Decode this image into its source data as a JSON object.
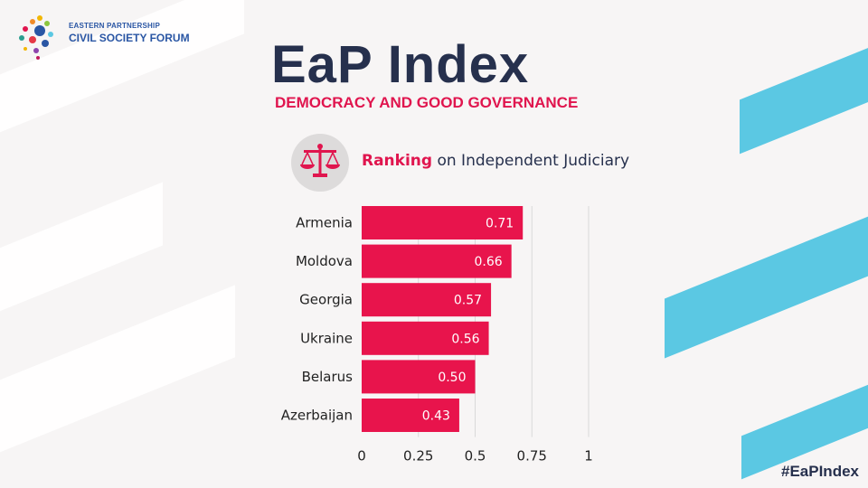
{
  "brand": {
    "org_line1": "EASTERN PARTNERSHIP",
    "org_line2": "CIVIL SOCIETY FORUM",
    "hashtag": "#EaPIndex"
  },
  "header": {
    "title": "EaP Index",
    "subtitle": "DEMOCRACY AND GOOD GOVERNANCE",
    "chart_heading_accent": "Ranking",
    "chart_heading_rest": " on Independent Judiciary"
  },
  "icons": [
    "eap-csf-logo-icon",
    "scales-of-justice-icon"
  ],
  "colors": {
    "accent": "#e0154e",
    "navy": "#26304d",
    "stripe_blue": "#5bc8e3",
    "bar": "#e8144c"
  },
  "chart_data": {
    "type": "bar",
    "orientation": "horizontal",
    "title": "Ranking on Independent Judiciary",
    "categories": [
      "Armenia",
      "Moldova",
      "Georgia",
      "Ukraine",
      "Belarus",
      "Azerbaijan"
    ],
    "values": [
      0.71,
      0.66,
      0.57,
      0.56,
      0.5,
      0.43
    ],
    "value_labels": [
      "0.71",
      "0.66",
      "0.57",
      "0.56",
      "0.50",
      "0.43"
    ],
    "xlim": [
      0,
      1
    ],
    "xticks": [
      0,
      0.25,
      0.5,
      0.75,
      1
    ],
    "xtick_labels": [
      "0",
      "0.25",
      "0.5",
      "0.75",
      "1"
    ],
    "xlabel": "",
    "ylabel": "",
    "grid": true
  }
}
